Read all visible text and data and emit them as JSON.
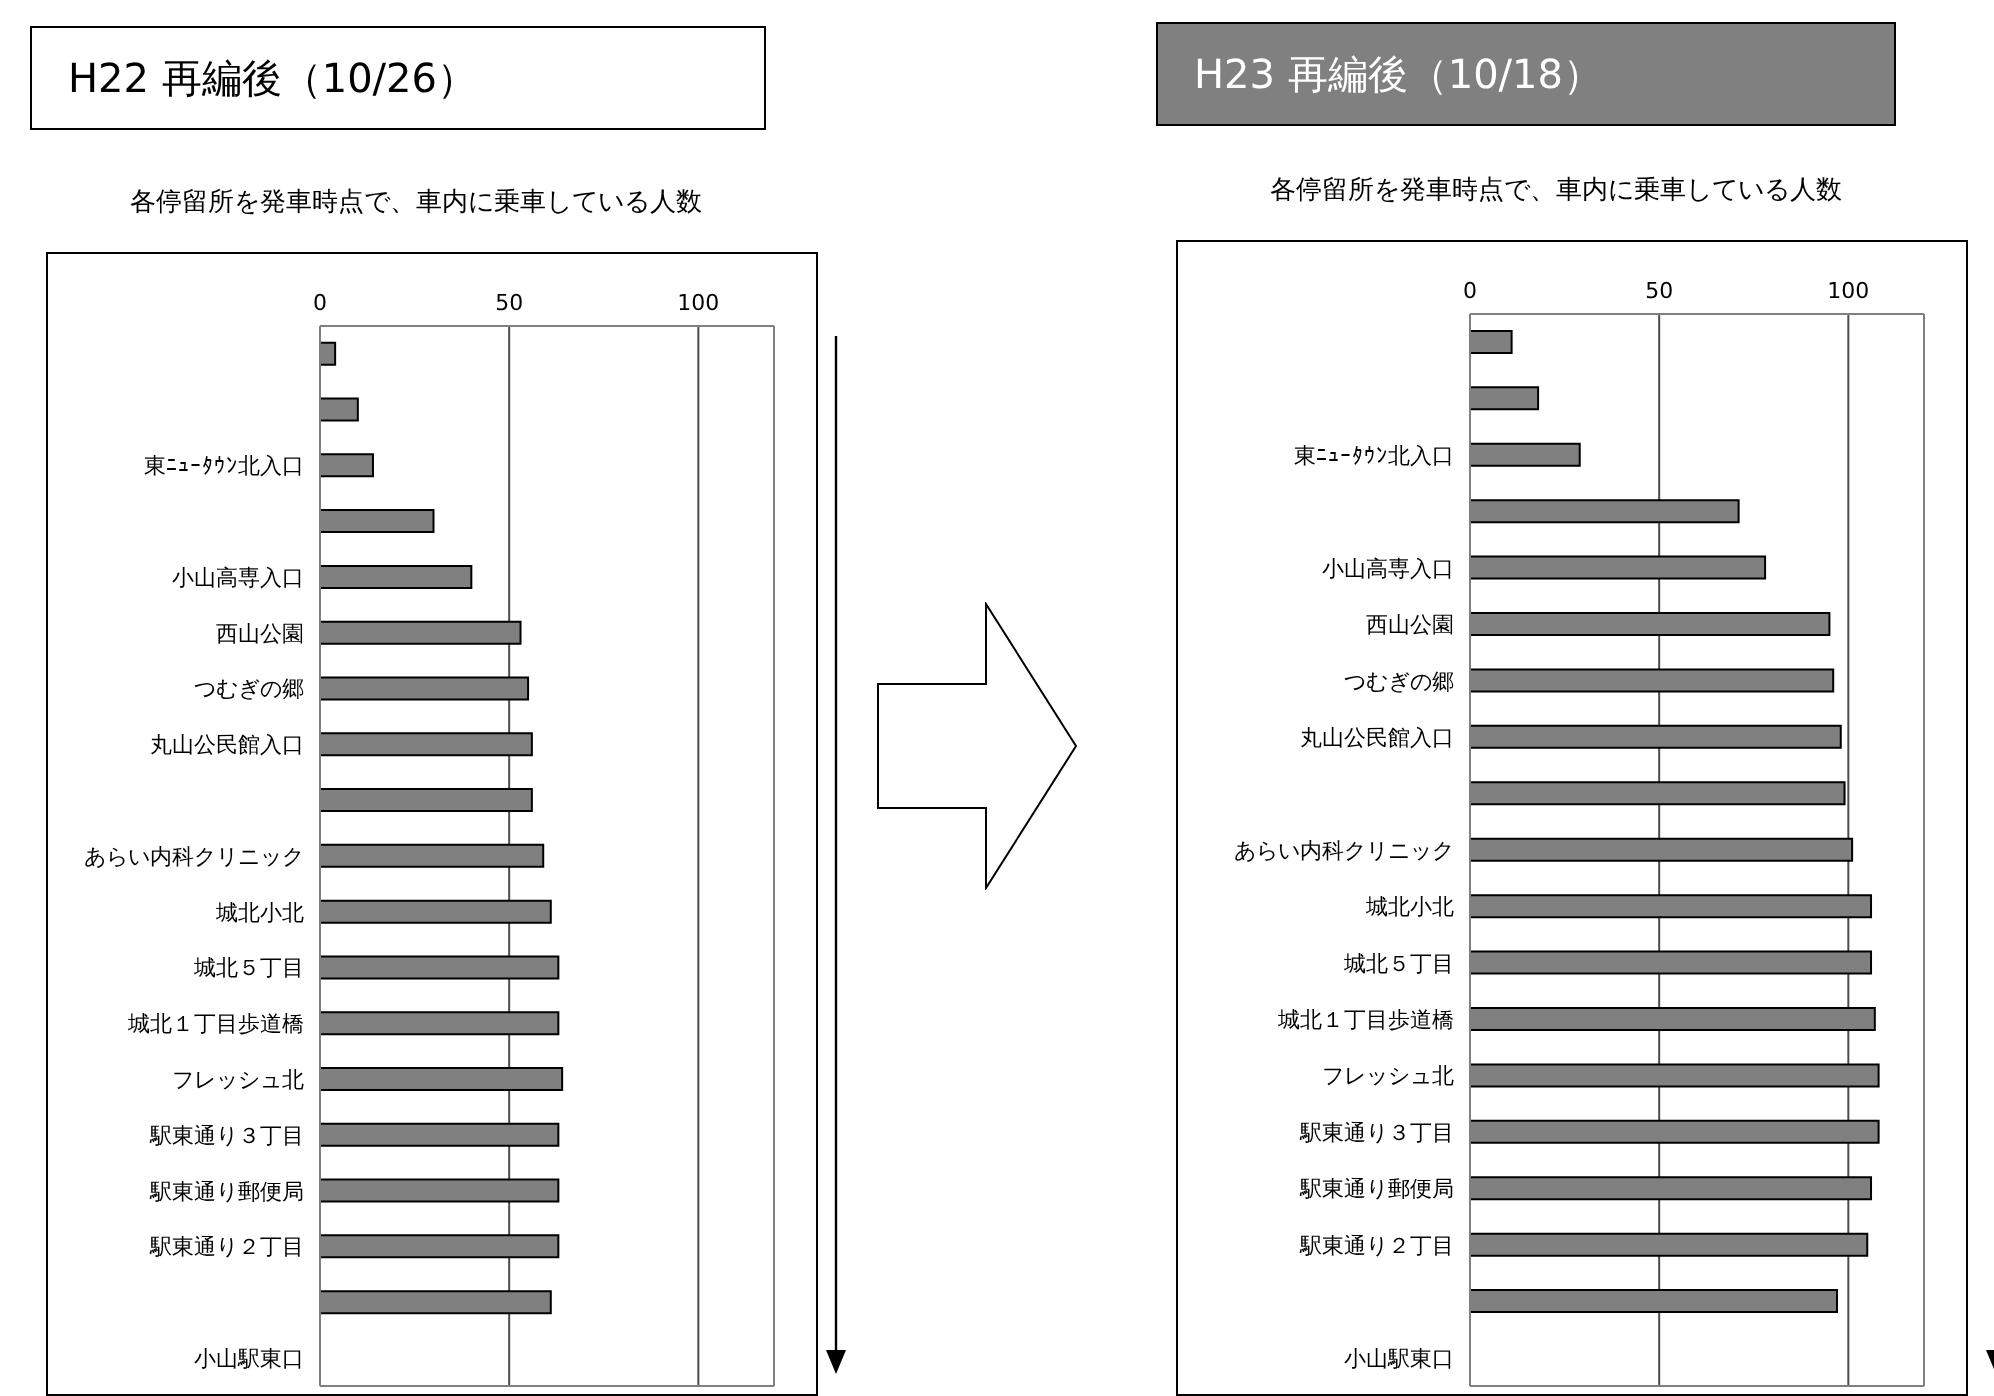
{
  "chart_data": [
    {
      "type": "bar",
      "orientation": "horizontal",
      "title": "H22 再編後（10/26）",
      "subtitle": "各停留所を発車時点で、車内に乗車している人数",
      "categories": [
        null,
        null,
        "東ﾆｭｰﾀｳﾝ北入口",
        null,
        "小山高専入口",
        "西山公園",
        "つむぎの郷",
        "丸山公民館入口",
        null,
        "あらい内科クリニック",
        "城北小北",
        "城北５丁目",
        "城北１丁目歩道橋",
        "フレッシュ北",
        "駅東通り３丁目",
        "駅東通り郵便局",
        "駅東通り２丁目",
        null,
        "小山駅東口"
      ],
      "values": [
        4,
        10,
        14,
        30,
        40,
        53,
        55,
        56,
        56,
        59,
        61,
        63,
        63,
        64,
        63,
        63,
        63,
        61,
        0
      ],
      "color": "#808080",
      "xlim": [
        0,
        120
      ],
      "xticks": [
        0,
        50,
        100
      ],
      "grid": "x"
    },
    {
      "type": "bar",
      "orientation": "horizontal",
      "title": "H23 再編後（10/18）",
      "subtitle": "各停留所を発車時点で、車内に乗車している人数",
      "categories": [
        null,
        null,
        "東ﾆｭｰﾀｳﾝ北入口",
        null,
        "小山高専入口",
        "西山公園",
        "つむぎの郷",
        "丸山公民館入口",
        null,
        "あらい内科クリニック",
        "城北小北",
        "城北５丁目",
        "城北１丁目歩道橋",
        "フレッシュ北",
        "駅東通り３丁目",
        "駅東通り郵便局",
        "駅東通り２丁目",
        null,
        "小山駅東口"
      ],
      "values": [
        11,
        18,
        29,
        71,
        78,
        95,
        96,
        98,
        99,
        101,
        106,
        106,
        107,
        108,
        108,
        106,
        105,
        97,
        0
      ],
      "color": "#808080",
      "xlim": [
        0,
        120
      ],
      "xticks": [
        0,
        50,
        100
      ],
      "grid": "x"
    }
  ]
}
